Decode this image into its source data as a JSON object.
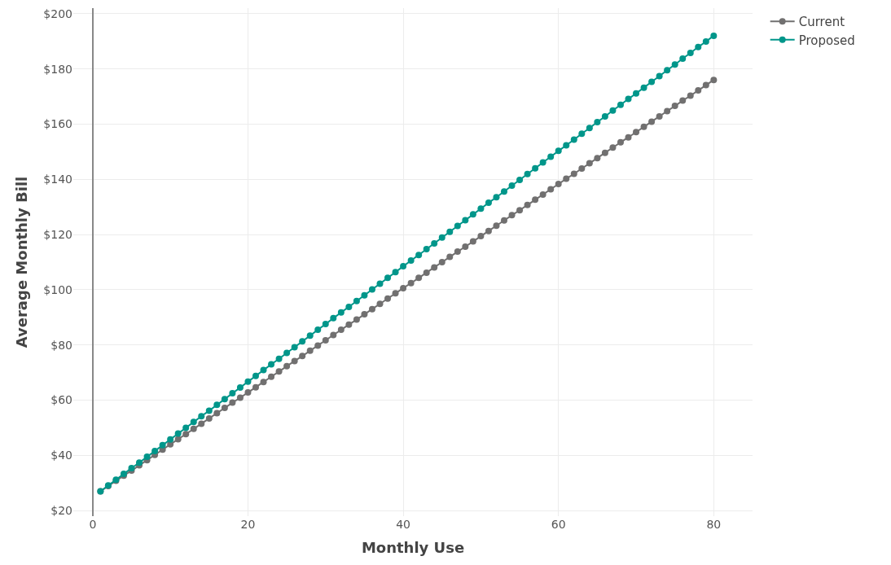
{
  "chart_data": {
    "type": "line",
    "xlabel": "Monthly Use",
    "ylabel": "Average Monthly Bill",
    "x": [
      1,
      2,
      3,
      4,
      5,
      6,
      7,
      8,
      9,
      10,
      11,
      12,
      13,
      14,
      15,
      16,
      17,
      18,
      19,
      20,
      21,
      22,
      23,
      24,
      25,
      26,
      27,
      28,
      29,
      30,
      31,
      32,
      33,
      34,
      35,
      36,
      37,
      38,
      39,
      40,
      41,
      42,
      43,
      44,
      45,
      46,
      47,
      48,
      49,
      50,
      51,
      52,
      53,
      54,
      55,
      56,
      57,
      58,
      59,
      60,
      61,
      62,
      63,
      64,
      65,
      66,
      67,
      68,
      69,
      70,
      71,
      72,
      73,
      74,
      75,
      76,
      77,
      78,
      79,
      80
    ],
    "series": [
      {
        "name": "Current",
        "color": "#717070",
        "values": [
          27.0,
          28.9,
          30.8,
          32.7,
          34.5,
          36.4,
          38.3,
          40.2,
          42.1,
          44.0,
          45.9,
          47.7,
          49.6,
          51.5,
          53.4,
          55.3,
          57.2,
          59.1,
          60.9,
          62.8,
          64.7,
          66.6,
          68.5,
          70.4,
          72.3,
          74.2,
          76.0,
          77.9,
          79.8,
          81.7,
          83.6,
          85.5,
          87.4,
          89.2,
          91.1,
          93.0,
          94.9,
          96.8,
          98.7,
          100.6,
          102.4,
          104.3,
          106.2,
          108.1,
          110.0,
          111.9,
          113.8,
          115.6,
          117.5,
          119.4,
          121.3,
          123.2,
          125.1,
          127.0,
          128.8,
          130.7,
          132.6,
          134.5,
          136.4,
          138.3,
          140.2,
          142.0,
          143.9,
          145.8,
          147.7,
          149.6,
          151.5,
          153.4,
          155.2,
          157.1,
          159.0,
          160.9,
          162.8,
          164.7,
          166.6,
          168.5,
          170.3,
          172.2,
          174.1,
          176.0
        ]
      },
      {
        "name": "Proposed",
        "color": "#00968a",
        "values": [
          27.0,
          29.1,
          31.2,
          33.3,
          35.4,
          37.4,
          39.5,
          41.6,
          43.7,
          45.8,
          47.9,
          50.0,
          52.1,
          54.2,
          56.2,
          58.3,
          60.4,
          62.5,
          64.6,
          66.7,
          68.8,
          70.9,
          73.0,
          75.0,
          77.1,
          79.2,
          81.3,
          83.4,
          85.5,
          87.6,
          89.7,
          91.8,
          93.8,
          95.9,
          98.0,
          100.1,
          102.2,
          104.3,
          106.4,
          108.5,
          110.6,
          112.6,
          114.7,
          116.8,
          118.9,
          121.0,
          123.1,
          125.2,
          127.3,
          129.4,
          131.5,
          133.5,
          135.6,
          137.7,
          139.8,
          141.9,
          144.0,
          146.1,
          148.2,
          150.3,
          152.3,
          154.4,
          156.5,
          158.6,
          160.7,
          162.8,
          164.9,
          167.0,
          169.1,
          171.1,
          173.2,
          175.3,
          177.4,
          179.5,
          181.6,
          183.7,
          185.8,
          187.9,
          189.9,
          192.0
        ]
      }
    ],
    "xlim": [
      -2.5,
      85
    ],
    "xticks": [
      0,
      20,
      40,
      60,
      80
    ],
    "ylim": [
      18,
      202
    ],
    "yticks": [
      {
        "value": 20,
        "label": "$20"
      },
      {
        "value": 40,
        "label": "$40"
      },
      {
        "value": 60,
        "label": "$60"
      },
      {
        "value": 80,
        "label": "$80"
      },
      {
        "value": 100,
        "label": "$100"
      },
      {
        "value": 120,
        "label": "$120"
      },
      {
        "value": 140,
        "label": "$140"
      },
      {
        "value": 160,
        "label": "$160"
      },
      {
        "value": 180,
        "label": "$180"
      },
      {
        "value": 200,
        "label": "$200"
      }
    ],
    "grid": true,
    "legend": "top right",
    "marker": "circle",
    "line_style": "solid"
  }
}
